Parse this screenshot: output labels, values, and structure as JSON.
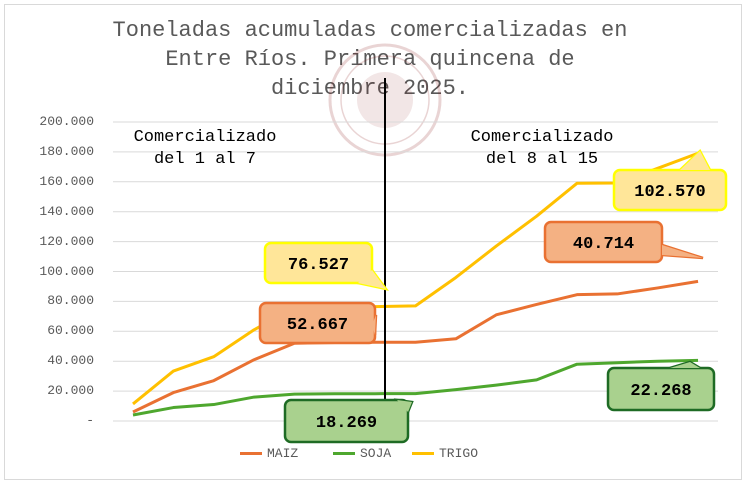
{
  "chart_data": {
    "type": "line",
    "title": "Toneladas acumuladas comercializadas en Entre Ríos. Primera quincena de diciembre 2025.",
    "title_lines": [
      "Toneladas acumuladas comercializadas en",
      "Entre Ríos. Primera quincena de",
      "diciembre 2025."
    ],
    "x": [
      1,
      2,
      3,
      4,
      5,
      6,
      7,
      8,
      9,
      10,
      11,
      12,
      13,
      14,
      15
    ],
    "ylim": [
      0,
      200000
    ],
    "yticks": [
      0,
      20000,
      40000,
      60000,
      80000,
      100000,
      120000,
      140000,
      160000,
      180000,
      200000
    ],
    "ytick_labels": [
      "-",
      "20.000",
      "40.000",
      "60.000",
      "80.000",
      "100.000",
      "120.000",
      "140.000",
      "160.000",
      "180.000",
      "200.000"
    ],
    "grid": true,
    "legend_position": "bottom",
    "series": [
      {
        "name": "MAIZ",
        "color": "#E97132",
        "values": [
          6000,
          19000,
          27000,
          41000,
          52000,
          52500,
          52667,
          52700,
          55000,
          71000,
          78000,
          84500,
          85000,
          89000,
          93381
        ]
      },
      {
        "name": "SOJA",
        "color": "#4EA72E",
        "values": [
          4000,
          9000,
          11000,
          16000,
          18000,
          18200,
          18269,
          18300,
          21000,
          24000,
          27500,
          38000,
          39000,
          40000,
          40537
        ]
      },
      {
        "name": "TRIGO",
        "color": "#FFC000",
        "values": [
          11400,
          33400,
          43000,
          61000,
          76000,
          76400,
          76527,
          77000,
          96000,
          117000,
          137000,
          159000,
          159200,
          169000,
          179097
        ]
      }
    ],
    "sections": [
      {
        "label_line1": "Comercializado",
        "label_line2": "del 1 al 7"
      },
      {
        "label_line1": "Comercializado",
        "label_line2": "del 8 al 15"
      }
    ],
    "annotations": [
      {
        "series": "TRIGO",
        "period": "1-7",
        "text": "76.527"
      },
      {
        "series": "MAIZ",
        "period": "1-7",
        "text": "52.667"
      },
      {
        "series": "SOJA",
        "period": "1-7",
        "text": "18.269"
      },
      {
        "series": "TRIGO",
        "period": "8-15",
        "text": "102.570"
      },
      {
        "series": "MAIZ",
        "period": "8-15",
        "text": "40.714"
      },
      {
        "series": "SOJA",
        "period": "8-15",
        "text": "22.268"
      }
    ]
  }
}
